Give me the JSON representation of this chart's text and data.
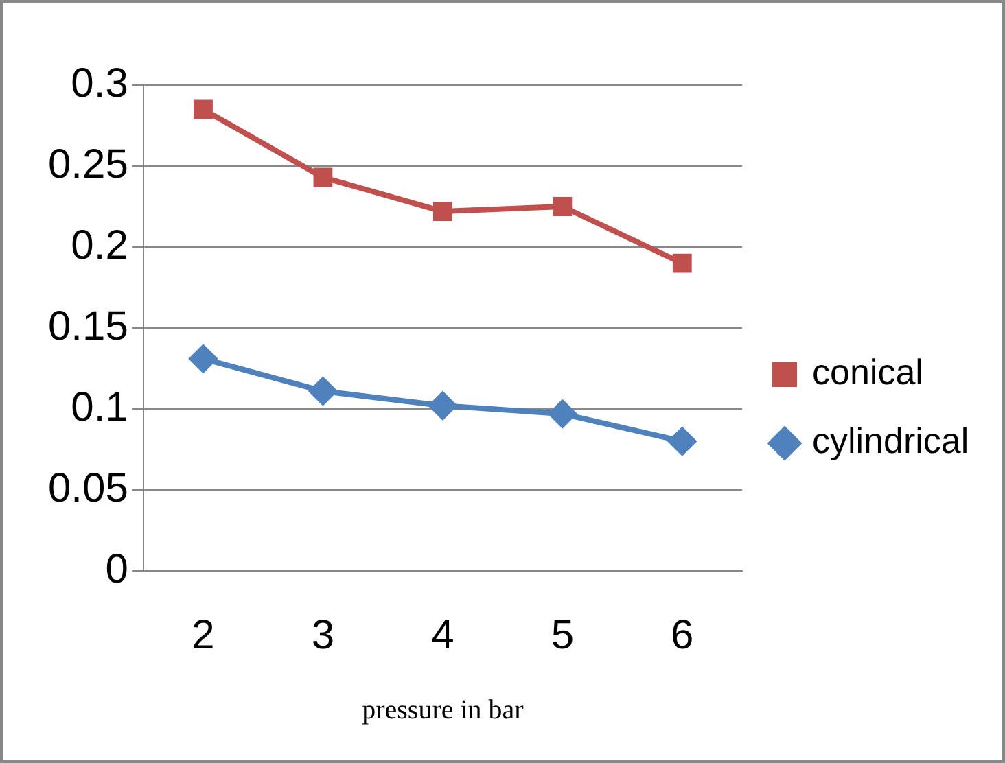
{
  "chart_data": {
    "type": "line",
    "xlabel": "pressure in bar",
    "categories": [
      "2",
      "3",
      "4",
      "5",
      "6"
    ],
    "series": [
      {
        "name": "conical",
        "color": "#c0504d",
        "marker": "square",
        "values": [
          0.285,
          0.243,
          0.222,
          0.225,
          0.19
        ]
      },
      {
        "name": "cylindrical",
        "color": "#4f81bd",
        "marker": "diamond",
        "values": [
          0.131,
          0.111,
          0.102,
          0.097,
          0.08
        ]
      }
    ],
    "ylim": [
      0,
      0.3
    ],
    "yticks": [
      0,
      0.05,
      0.1,
      0.15,
      0.2,
      0.25,
      0.3
    ],
    "grid": "y",
    "legend": "right"
  }
}
